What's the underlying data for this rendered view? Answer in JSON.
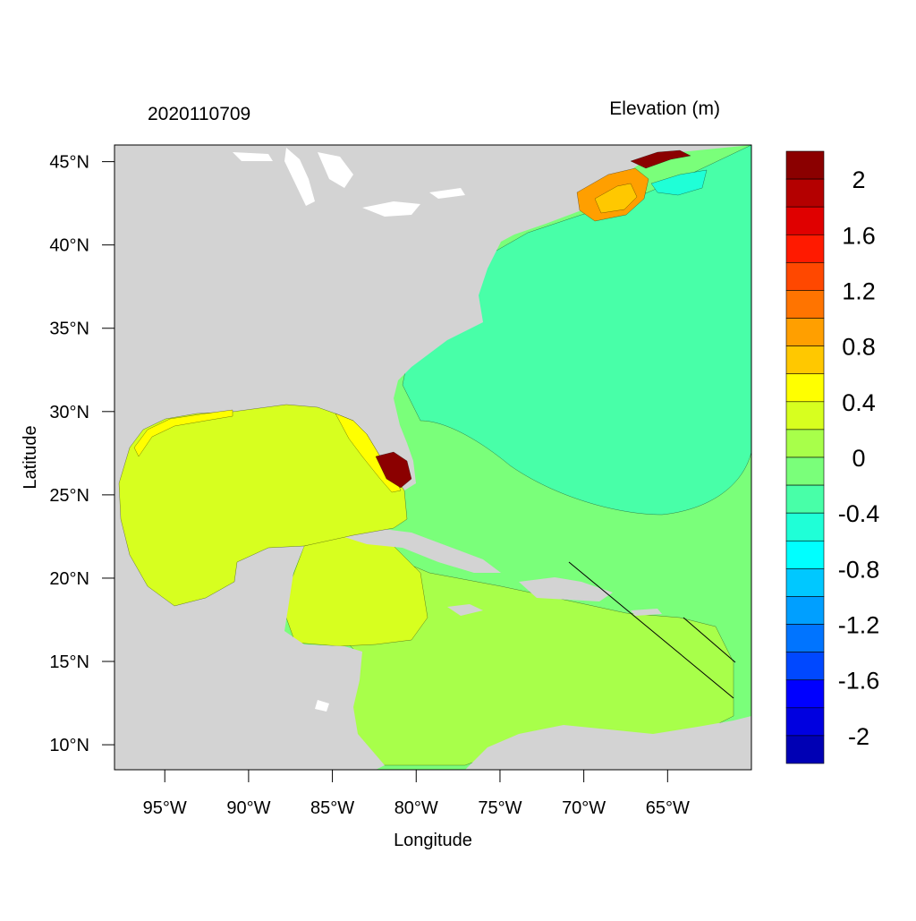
{
  "header": {
    "timestamp": "2020110709",
    "variable": "Elevation (m)"
  },
  "axes": {
    "x_title": "Longitude",
    "y_title": "Latitude",
    "x_ticks": [
      {
        "value": -95,
        "label": "95°W"
      },
      {
        "value": -90,
        "label": "90°W"
      },
      {
        "value": -85,
        "label": "85°W"
      },
      {
        "value": -80,
        "label": "80°W"
      },
      {
        "value": -75,
        "label": "75°W"
      },
      {
        "value": -70,
        "label": "70°W"
      },
      {
        "value": -65,
        "label": "65°W"
      }
    ],
    "y_ticks": [
      {
        "value": 45,
        "label": "45°N"
      },
      {
        "value": 40,
        "label": "40°N"
      },
      {
        "value": 35,
        "label": "35°N"
      },
      {
        "value": 30,
        "label": "30°N"
      },
      {
        "value": 25,
        "label": "25°N"
      },
      {
        "value": 20,
        "label": "20°N"
      },
      {
        "value": 15,
        "label": "15°N"
      },
      {
        "value": 10,
        "label": "10°N"
      }
    ],
    "lon_range": [
      -98,
      -60
    ],
    "lat_range": [
      8.5,
      46
    ]
  },
  "colorbar": {
    "labels": [
      "2",
      "1.6",
      "1.2",
      "0.8",
      "0.4",
      "0",
      "-0.4",
      "-0.8",
      "-1.2",
      "-1.6",
      "-2"
    ],
    "colors": [
      "#8b0000",
      "#b40000",
      "#e00000",
      "#ff1a00",
      "#ff4800",
      "#ff7400",
      "#ff9f00",
      "#ffc800",
      "#ffff00",
      "#d7ff1f",
      "#a8ff4a",
      "#7aff7a",
      "#48ffa8",
      "#1fffd7",
      "#00ffff",
      "#00c8ff",
      "#009fff",
      "#0074ff",
      "#0048ff",
      "#0000ff",
      "#0000e0",
      "#0000b4"
    ]
  },
  "map_colors": {
    "land": "#d3d3d3",
    "lakes": "#ffffff",
    "gulf": "#d7ff1f",
    "caribbean": "#a8ff4a",
    "atlantic_shelf": "#7aff7a",
    "atlantic_deep": "#48ffa8",
    "surge_high": "#8b0000",
    "florida_shelf": "#ffff00"
  }
}
